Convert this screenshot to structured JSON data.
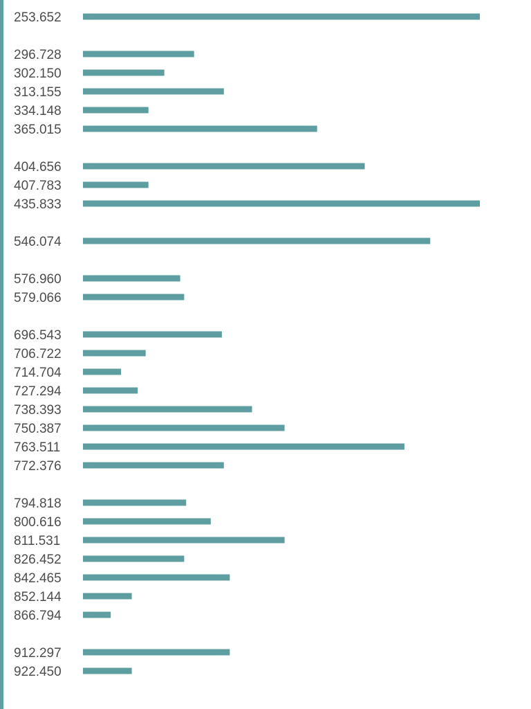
{
  "theme": {
    "bar_color": "#5f9ea0",
    "rule_color": "#5f9ea0",
    "label_color": "#4d4d4d"
  },
  "chart_data": {
    "type": "bar",
    "orientation": "horizontal",
    "title": "",
    "xlabel": "",
    "ylabel": "",
    "grid": false,
    "xlim": [
      0,
      100
    ],
    "categories": [
      "253.652",
      "296.728",
      "302.150",
      "313.155",
      "334.148",
      "365.015",
      "404.656",
      "407.783",
      "435.833",
      "546.074",
      "576.960",
      "579.066",
      "696.543",
      "706.722",
      "714.704",
      "727.294",
      "738.393",
      "750.387",
      "763.511",
      "772.376",
      "794.818",
      "800.616",
      "811.531",
      "826.452",
      "842.465",
      "852.144",
      "866.794",
      "912.297",
      "922.450"
    ],
    "values": [
      100,
      28,
      20.5,
      35.5,
      16.5,
      59,
      71,
      16.5,
      100,
      87.5,
      24.5,
      25.5,
      35,
      15.8,
      9.6,
      13.8,
      42.6,
      50.8,
      81,
      35.5,
      26,
      32.2,
      50.8,
      25.5,
      37,
      12.3,
      7,
      37,
      12.3
    ],
    "groups": [
      [
        "253.652"
      ],
      [
        "296.728",
        "302.150",
        "313.155",
        "334.148",
        "365.015"
      ],
      [
        "404.656",
        "407.783",
        "435.833"
      ],
      [
        "546.074"
      ],
      [
        "576.960",
        "579.066"
      ],
      [
        "696.543",
        "706.722",
        "714.704",
        "727.294",
        "738.393",
        "750.387",
        "763.511",
        "772.376"
      ],
      [
        "794.818",
        "800.616",
        "811.531",
        "826.452",
        "842.465",
        "852.144",
        "866.794"
      ],
      [
        "912.297",
        "922.450"
      ]
    ]
  }
}
